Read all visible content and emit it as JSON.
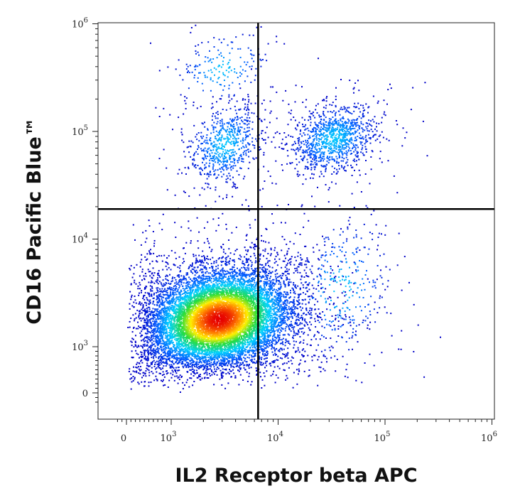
{
  "chart_data": {
    "type": "scatter",
    "title": "",
    "xlabel": "IL2 Receptor beta APC",
    "ylabel": "CD16 Pacific Blue™",
    "scale": "biexponential (logicle) on both axes",
    "xlim": [
      -300,
      1200000
    ],
    "ylim": [
      -300,
      1200000
    ],
    "x_ticks": [
      {
        "value": 0,
        "base": "0",
        "exp": ""
      },
      {
        "value": 1000,
        "base": "10",
        "exp": "3"
      },
      {
        "value": 10000,
        "base": "10",
        "exp": "4"
      },
      {
        "value": 100000,
        "base": "10",
        "exp": "5"
      },
      {
        "value": 1000000,
        "base": "10",
        "exp": "6"
      }
    ],
    "y_ticks": [
      {
        "value": 0,
        "base": "0",
        "exp": ""
      },
      {
        "value": 1000,
        "base": "10",
        "exp": "3"
      },
      {
        "value": 10000,
        "base": "10",
        "exp": "4"
      },
      {
        "value": 100000,
        "base": "10",
        "exp": "5"
      },
      {
        "value": 1000000,
        "base": "10",
        "exp": "6"
      }
    ],
    "quadrant_gates": {
      "x": 6500,
      "y": 19000
    },
    "density_coloring": "blue (low) → cyan → green → yellow → red (high)",
    "populations": [
      {
        "quadrant": "lower-left",
        "center_x": 2800,
        "center_y": 1800,
        "spread_x_decades": 0.33,
        "spread_y_decades": 0.22,
        "events": 11000
      },
      {
        "quadrant": "upper-right",
        "center_x": 33000,
        "center_y": 85000,
        "spread_x_decades": 0.19,
        "spread_y_decades": 0.15,
        "events": 1100
      },
      {
        "quadrant": "upper-left",
        "center_x": 3200,
        "center_y": 75000,
        "spread_x_decades": 0.16,
        "spread_y_decades": 0.17,
        "events": 700
      },
      {
        "quadrant": "upper-left",
        "center_x": 3000,
        "center_y": 380000,
        "spread_x_decades": 0.2,
        "spread_y_decades": 0.15,
        "events": 180
      },
      {
        "quadrant": "lower-right",
        "center_x": 38000,
        "center_y": 3500,
        "spread_x_decades": 0.22,
        "spread_y_decades": 0.3,
        "events": 300
      }
    ],
    "grid": false,
    "legend": "none"
  }
}
